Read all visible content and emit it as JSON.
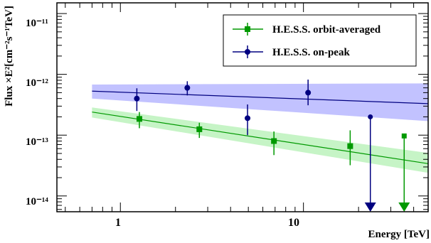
{
  "chart_data": {
    "type": "scatter",
    "xlabel": "Energy [TeV]",
    "ylabel": "Flux ×E²[cm⁻²s⁻¹TeV]",
    "xscale": "log",
    "yscale": "log",
    "xlim": [
      0.45,
      48
    ],
    "ylim": [
      5.5e-15,
      1.5e-11
    ],
    "x_tick_labels": [
      "1",
      "10"
    ],
    "y_tick_labels": [
      "10⁻¹¹",
      "10⁻¹²",
      "10⁻¹³",
      "10⁻¹⁴"
    ],
    "grid": false,
    "legend_position": "top-right",
    "series": [
      {
        "name": "H.E.S.S. orbit-averaged",
        "color": "#009900",
        "band_color": "#b3f0b3",
        "marker": "square",
        "points": [
          {
            "x": 1.27,
            "y": 1.85e-13,
            "ylo": 1.3e-13,
            "yhi": 2.4e-13
          },
          {
            "x": 2.7,
            "y": 1.25e-13,
            "ylo": 9e-14,
            "yhi": 1.6e-13
          },
          {
            "x": 6.9,
            "y": 8e-14,
            "ylo": 4.7e-14,
            "yhi": 1.15e-13
          },
          {
            "x": 18.0,
            "y": 6.6e-14,
            "ylo": 3.2e-14,
            "yhi": 1.2e-13
          }
        ],
        "upper_limits": [
          {
            "x": 35.5,
            "y": 9.7e-14
          }
        ],
        "fit": {
          "x": [
            0.7,
            48
          ],
          "y": [
            2.4e-13,
            3.4e-14
          ]
        },
        "band": {
          "x": [
            0.7,
            48
          ],
          "lo": [
            1.95e-13,
            2.4e-14
          ],
          "hi": [
            2.85e-13,
            5.1e-14
          ]
        }
      },
      {
        "name": "H.E.S.S. on-peak",
        "color": "#000080",
        "band_color": "#b3b3ff",
        "marker": "circle",
        "points": [
          {
            "x": 1.23,
            "y": 4e-13,
            "ylo": 2.5e-13,
            "yhi": 5.9e-13
          },
          {
            "x": 2.32,
            "y": 6e-13,
            "ylo": 4.5e-13,
            "yhi": 7.7e-13
          },
          {
            "x": 4.95,
            "y": 1.9e-13,
            "ylo": 1e-13,
            "yhi": 3.2e-13
          },
          {
            "x": 10.6,
            "y": 5e-13,
            "ylo": 3.1e-13,
            "yhi": 8.2e-13
          }
        ],
        "upper_limits": [
          {
            "x": 23.2,
            "y": 2e-13
          }
        ],
        "fit": {
          "x": [
            0.7,
            48
          ],
          "y": [
            5.3e-13,
            3.3e-13
          ]
        },
        "band": {
          "x": [
            0.7,
            48
          ],
          "lo": [
            4e-13,
            1.7e-13
          ],
          "hi": [
            6.8e-13,
            7.1e-13
          ]
        }
      }
    ]
  }
}
